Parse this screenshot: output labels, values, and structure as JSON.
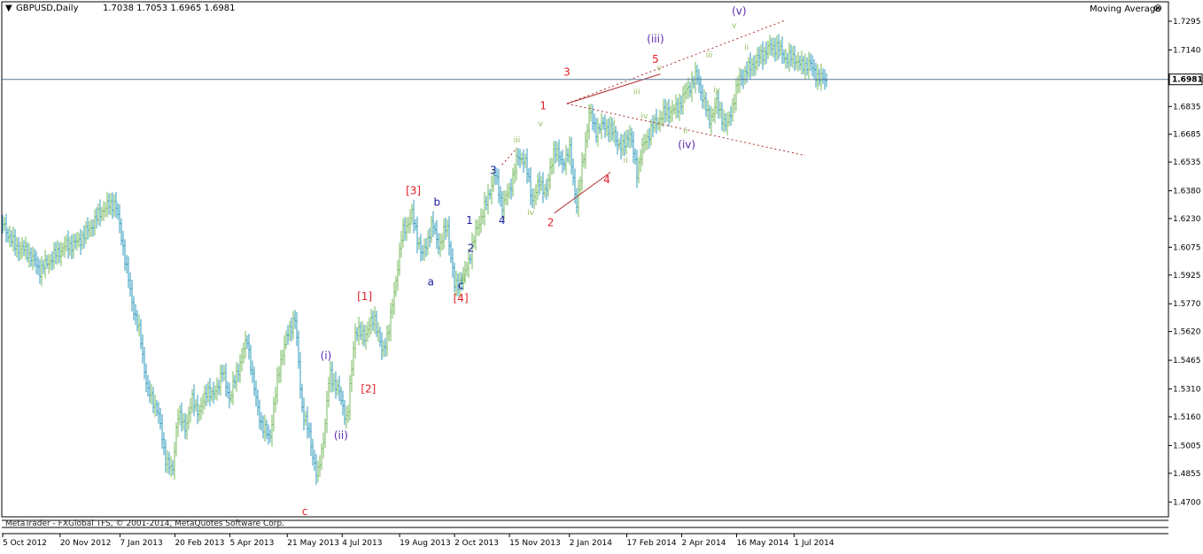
{
  "header": {
    "symbol_label": "GBPUSD,Daily",
    "ohlc": "1.7038 1.7053 1.6965 1.6981",
    "indicator_name": "Moving Average",
    "indicator_icon": "close-circle-icon"
  },
  "footer": {
    "copyright": "MetaTrader - FXGlobal TFS, © 2001-2014, MetaQuotes Software Corp."
  },
  "colors": {
    "background": "#ffffff",
    "axis": "#000000",
    "price_line": "#5a7a9a",
    "bull_bar": "#74b85c",
    "bear_bar": "#2f9bbd",
    "count_red": "#e0202a",
    "count_navy": "#1c1c9c",
    "count_green": "#8fbc5a",
    "count_purple": "#5a2ab0",
    "trendline": "#b03030"
  },
  "chart_data": {
    "type": "ohlc_bar",
    "symbol": "GBPUSD",
    "timeframe": "Daily",
    "current_price": 1.6981,
    "ylim": [
      1.462,
      1.74
    ],
    "y_ticks": [
      "1.7295",
      "1.7140",
      "1.6983",
      "1.6835",
      "1.6685",
      "1.6535",
      "1.6380",
      "1.6230",
      "1.6075",
      "1.5925",
      "1.5770",
      "1.5620",
      "1.5465",
      "1.5310",
      "1.5160",
      "1.5005",
      "1.4855",
      "1.4700"
    ],
    "x_tick_labels": [
      "5 Oct 2012",
      "20 Nov 2012",
      "7 Jan 2013",
      "20 Feb 2013",
      "5 Apr 2013",
      "21 May 2013",
      "4 Jul 2013",
      "19 Aug 2013",
      "2 Oct 2013",
      "15 Nov 2013",
      "2 Jan 2014",
      "17 Feb 2014",
      "2 Apr 2014",
      "16 May 2014",
      "1 Jul 2014"
    ],
    "x_tick_days": [
      0,
      46,
      94,
      138,
      182,
      228,
      272,
      318,
      362,
      406,
      454,
      500,
      544,
      588,
      634
    ],
    "series": [
      {
        "days": [
          0,
          10,
          20,
          30,
          40,
          50,
          60,
          70,
          80,
          90,
          96,
          103,
          110,
          116,
          124,
          130,
          136,
          140,
          146,
          152,
          158,
          164,
          168,
          176,
          182,
          190,
          196,
          202,
          208,
          214,
          222,
          228,
          234,
          240,
          246,
          252,
          258,
          262,
          270,
          276,
          282,
          290,
          298,
          304,
          310,
          320,
          328,
          336,
          344,
          350,
          356,
          362,
          370,
          376,
          382,
          388,
          394,
          400,
          406,
          412,
          418,
          424,
          430,
          436,
          442,
          448,
          454,
          460,
          466,
          470,
          476,
          482,
          490,
          496,
          502,
          508,
          512,
          520,
          530,
          540,
          548,
          556,
          566,
          572,
          580,
          590,
          598,
          606,
          614,
          620,
          628,
          634,
          640,
          646,
          650,
          656,
          660
        ],
        "closes": [
          1.62,
          1.608,
          1.605,
          1.595,
          1.602,
          1.608,
          1.61,
          1.618,
          1.628,
          1.632,
          1.61,
          1.58,
          1.56,
          1.53,
          1.52,
          1.495,
          1.485,
          1.518,
          1.51,
          1.525,
          1.518,
          1.532,
          1.526,
          1.54,
          1.526,
          1.545,
          1.558,
          1.528,
          1.51,
          1.505,
          1.545,
          1.56,
          1.57,
          1.52,
          1.505,
          1.482,
          1.51,
          1.54,
          1.528,
          1.513,
          1.562,
          1.56,
          1.57,
          1.55,
          1.565,
          1.615,
          1.625,
          1.602,
          1.62,
          1.608,
          1.62,
          1.586,
          1.592,
          1.608,
          1.622,
          1.632,
          1.648,
          1.63,
          1.638,
          1.655,
          1.656,
          1.633,
          1.642,
          1.638,
          1.662,
          1.652,
          1.66,
          1.63,
          1.66,
          1.68,
          1.67,
          1.674,
          1.668,
          1.66,
          1.67,
          1.648,
          1.66,
          1.672,
          1.68,
          1.682,
          1.692,
          1.7,
          1.676,
          1.685,
          1.672,
          1.698,
          1.704,
          1.71,
          1.715,
          1.716,
          1.709,
          1.71,
          1.705,
          1.707,
          1.702,
          1.698,
          1.6981
        ]
      }
    ],
    "annotations": [
      {
        "text": "(i)",
        "day": 259,
        "price": 1.547,
        "color": "purple"
      },
      {
        "text": "(ii)",
        "day": 271,
        "price": 1.504,
        "color": "purple"
      },
      {
        "text": "[1]",
        "day": 290,
        "price": 1.579,
        "color": "red"
      },
      {
        "text": "[2]",
        "day": 293,
        "price": 1.529,
        "color": "red"
      },
      {
        "text": "[3]",
        "day": 329,
        "price": 1.636,
        "color": "red"
      },
      {
        "text": "b",
        "day": 348,
        "price": 1.63,
        "color": "navy"
      },
      {
        "text": "a",
        "day": 343,
        "price": 1.587,
        "color": "navy"
      },
      {
        "text": "c",
        "day": 367,
        "price": 1.585,
        "color": "navy"
      },
      {
        "text": "[4]",
        "day": 367,
        "price": 1.578,
        "color": "red"
      },
      {
        "text": "ii",
        "day": 369,
        "price": 1.589,
        "color": "green"
      },
      {
        "text": "1",
        "day": 374,
        "price": 1.62,
        "color": "navy"
      },
      {
        "text": "2",
        "day": 375,
        "price": 1.605,
        "color": "navy"
      },
      {
        "text": "3",
        "day": 393,
        "price": 1.647,
        "color": "navy"
      },
      {
        "text": "4",
        "day": 400,
        "price": 1.62,
        "color": "navy"
      },
      {
        "text": "iii",
        "day": 412,
        "price": 1.664,
        "color": "green"
      },
      {
        "text": "iv",
        "day": 423,
        "price": 1.625,
        "color": "green"
      },
      {
        "text": "1",
        "day": 433,
        "price": 1.682,
        "color": "red"
      },
      {
        "text": "v",
        "day": 431,
        "price": 1.673,
        "color": "green"
      },
      {
        "text": "2",
        "day": 439,
        "price": 1.619,
        "color": "red"
      },
      {
        "text": "3",
        "day": 452,
        "price": 1.7,
        "color": "red"
      },
      {
        "text": "4",
        "day": 484,
        "price": 1.642,
        "color": "red"
      },
      {
        "text": "i",
        "day": 490,
        "price": 1.674,
        "color": "green"
      },
      {
        "text": "ii",
        "day": 499,
        "price": 1.653,
        "color": "green"
      },
      {
        "text": "iii",
        "day": 508,
        "price": 1.69,
        "color": "green"
      },
      {
        "text": "iv",
        "day": 514,
        "price": 1.677,
        "color": "green"
      },
      {
        "text": "5",
        "day": 523,
        "price": 1.707,
        "color": "red"
      },
      {
        "text": "(iii)",
        "day": 523,
        "price": 1.718,
        "color": "purple"
      },
      {
        "text": "v",
        "day": 526,
        "price": 1.703,
        "color": "green"
      },
      {
        "text": "ii",
        "day": 547,
        "price": 1.669,
        "color": "green"
      },
      {
        "text": "(iv)",
        "day": 548,
        "price": 1.661,
        "color": "purple"
      },
      {
        "text": "iii",
        "day": 566,
        "price": 1.71,
        "color": "green"
      },
      {
        "text": "iv",
        "day": 572,
        "price": 1.691,
        "color": "green"
      },
      {
        "text": "v",
        "day": 586,
        "price": 1.726,
        "color": "green"
      },
      {
        "text": "(v)",
        "day": 590,
        "price": 1.733,
        "color": "purple"
      },
      {
        "text": "ii",
        "day": 596,
        "price": 1.714,
        "color": "green"
      },
      {
        "text": "c",
        "day": 242,
        "price": 1.463,
        "color": "red"
      }
    ],
    "trendlines": [
      {
        "from_day": 452,
        "from_price": 1.685,
        "to_day": 627,
        "to_price": 1.73,
        "style": "dotted",
        "color": "trendline"
      },
      {
        "from_day": 452,
        "from_price": 1.685,
        "to_day": 643,
        "to_price": 1.657,
        "style": "dotted",
        "color": "trendline"
      },
      {
        "from_day": 452,
        "from_price": 1.685,
        "to_day": 527,
        "to_price": 1.701,
        "style": "solid",
        "color": "trendline"
      },
      {
        "from_day": 442,
        "from_price": 1.626,
        "to_day": 487,
        "to_price": 1.648,
        "style": "solid",
        "color": "trendline"
      },
      {
        "from_day": 400,
        "from_price": 1.652,
        "to_day": 412,
        "to_price": 1.661,
        "style": "dotted",
        "color": "trendline"
      }
    ]
  }
}
